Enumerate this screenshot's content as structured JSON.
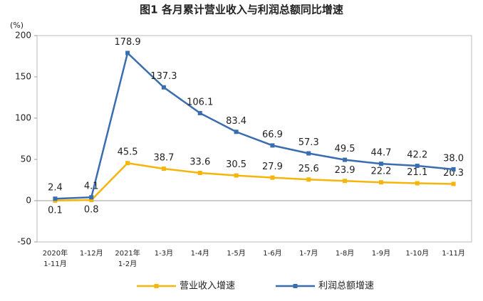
{
  "chart_data": {
    "type": "line",
    "title": "图1  各月累计营业收入与利润总额同比增速",
    "y_unit": "(%)",
    "categories": [
      [
        "2020年",
        "1-11月"
      ],
      [
        "1-12月"
      ],
      [
        "2021年",
        "1-2月"
      ],
      [
        "1-3月"
      ],
      [
        "1-4月"
      ],
      [
        "1-5月"
      ],
      [
        "1-6月"
      ],
      [
        "1-7月"
      ],
      [
        "1-8月"
      ],
      [
        "1-9月"
      ],
      [
        "1-10月"
      ],
      [
        "1-11月"
      ]
    ],
    "series": [
      {
        "name": "营业收入增速",
        "color": "#f5b50a",
        "values": [
          0.1,
          0.8,
          45.5,
          38.7,
          33.6,
          30.5,
          27.9,
          25.6,
          23.9,
          22.2,
          21.1,
          20.3
        ],
        "value_labels": [
          "0.1",
          "0.8",
          "45.5",
          "38.7",
          "33.6",
          "30.5",
          "27.9",
          "25.6",
          "23.9",
          "22.2",
          "21.1",
          "20.3"
        ]
      },
      {
        "name": "利润总额增速",
        "color": "#3a6db0",
        "values": [
          2.4,
          4.1,
          178.9,
          137.3,
          106.1,
          83.4,
          66.9,
          57.3,
          49.5,
          44.7,
          42.2,
          38.0
        ],
        "value_labels": [
          "2.4",
          "4.1",
          "178.9",
          "137.3",
          "106.1",
          "83.4",
          "66.9",
          "57.3",
          "49.5",
          "44.7",
          "42.2",
          "38.0"
        ]
      }
    ],
    "ylim": [
      -50,
      200
    ],
    "yticks": [
      -50,
      0,
      50,
      100,
      150,
      200
    ],
    "grid": false
  }
}
